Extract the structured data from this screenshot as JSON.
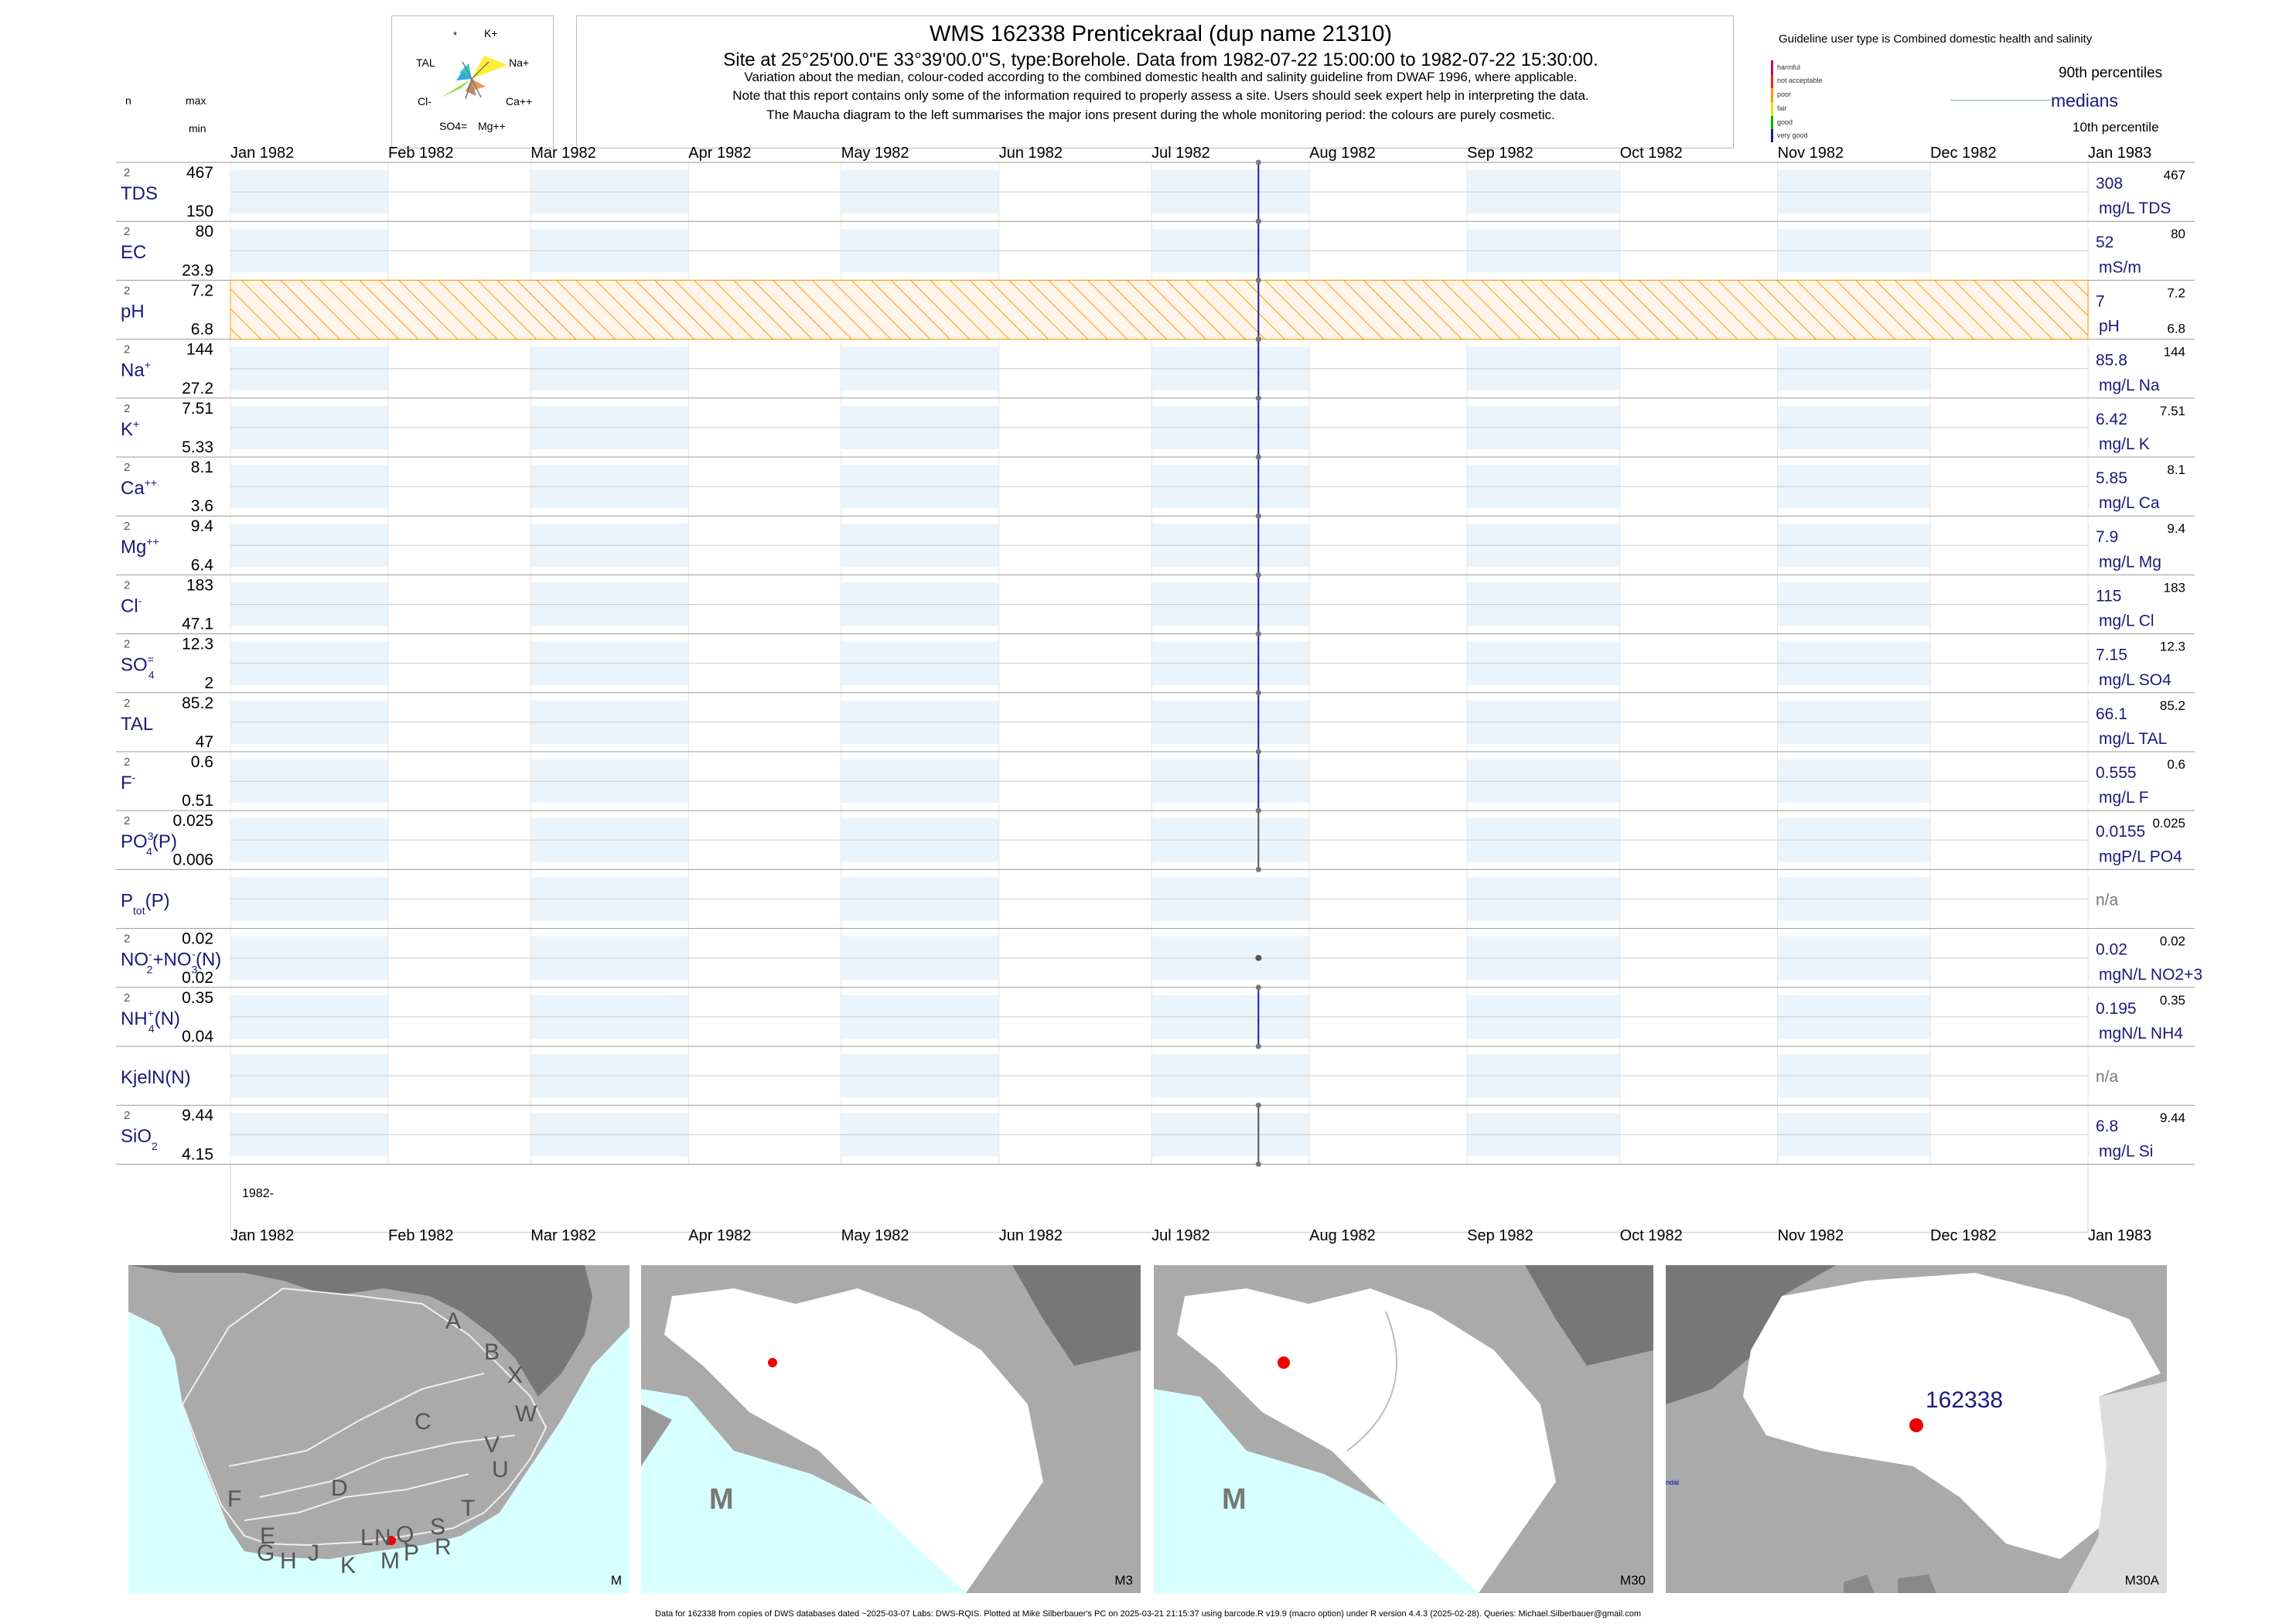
{
  "header": {
    "title": "WMS 162338  Prenticekraal (dup name 21310)",
    "subtitle": "Site at 25°25'00.0\"E 33°39'00.0\"S, type:Borehole.  Data from 1982-07-22 15:00:00 to 1982-07-22 15:30:00.",
    "note1": "Variation about the median,  colour-coded according to the combined domestic health and salinity guideline from DWAF 1996, where applicable.",
    "note2": "Note that this report contains only some of the information required to properly assess a site. Users should seek expert help in interpreting the data.",
    "note3": "The Maucha diagram to the left summarises the major ions present during the whole monitoring period: the colours are purely cosmetic."
  },
  "maucha": {
    "labels": [
      "*",
      "K+",
      "TAL",
      "Na+",
      "Cl-",
      "Ca++",
      "SO4=",
      "Mg++"
    ]
  },
  "left_header": {
    "n": "n",
    "max": "max",
    "min": "min"
  },
  "guideline": {
    "title": "Guideline user type is Combined domestic health and salinity",
    "levels": [
      "harmful",
      "not acceptable",
      "poor",
      "fair",
      "good",
      "very good"
    ],
    "level_colors": [
      "#c00070",
      "#ff2020",
      "#ff9900",
      "#f0e000",
      "#00b000",
      "#1a1aaa"
    ],
    "p90": "90th percentiles",
    "median": "medians",
    "p10": "10th percentile"
  },
  "axis": {
    "months": [
      "Jan 1982",
      "Feb 1982",
      "Mar 1982",
      "Apr 1982",
      "May 1982",
      "Jun 1982",
      "Jul 1982",
      "Aug 1982",
      "Sep 1982",
      "Oct 1982",
      "Nov 1982",
      "Dec 1982",
      "Jan 1983"
    ],
    "year_label": "1982-"
  },
  "chart_data": {
    "type": "line",
    "x_range": [
      "1982-01-01",
      "1983-01-01"
    ],
    "sample_date": "1982-07-22",
    "series": [
      {
        "label": "TDS",
        "n": "2",
        "max": "467",
        "min": "150",
        "median": "308",
        "unit": "mg/L TDS",
        "p90": "467",
        "p10": ""
      },
      {
        "label": "EC",
        "n": "2",
        "max": "80",
        "min": "23.9",
        "median": "52",
        "unit": "mS/m",
        "p90": "80",
        "p10": ""
      },
      {
        "label": "pH",
        "n": "2",
        "max": "7.2",
        "min": "6.8",
        "median": "7",
        "unit": "pH",
        "p90": "7.2",
        "p10": "6.8"
      },
      {
        "label": "Na",
        "sup": "+",
        "n": "2",
        "max": "144",
        "min": "27.2",
        "median": "85.8",
        "unit": "mg/L Na",
        "p90": "144",
        "p10": ""
      },
      {
        "label": "K",
        "sup": "+",
        "n": "2",
        "max": "7.51",
        "min": "5.33",
        "median": "6.42",
        "unit": "mg/L K",
        "p90": "7.51",
        "p10": ""
      },
      {
        "label": "Ca",
        "sup": "++",
        "n": "2",
        "max": "8.1",
        "min": "3.6",
        "median": "5.85",
        "unit": "mg/L Ca",
        "p90": "8.1",
        "p10": ""
      },
      {
        "label": "Mg",
        "sup": "++",
        "n": "2",
        "max": "9.4",
        "min": "6.4",
        "median": "7.9",
        "unit": "mg/L Mg",
        "p90": "9.4",
        "p10": ""
      },
      {
        "label": "Cl",
        "sup": "-",
        "n": "2",
        "max": "183",
        "min": "47.1",
        "median": "115",
        "unit": "mg/L Cl",
        "p90": "183",
        "p10": ""
      },
      {
        "label": "SO",
        "sub": "4",
        "sup": "=",
        "n": "2",
        "max": "12.3",
        "min": "2",
        "median": "7.15",
        "unit": "mg/L SO4",
        "p90": "12.3",
        "p10": ""
      },
      {
        "label": "TAL",
        "n": "2",
        "max": "85.2",
        "min": "47",
        "median": "66.1",
        "unit": "mg/L TAL",
        "p90": "85.2",
        "p10": ""
      },
      {
        "label": "F",
        "sup": "-",
        "n": "2",
        "max": "0.6",
        "min": "0.51",
        "median": "0.555",
        "unit": "mg/L F",
        "p90": "0.6",
        "p10": ""
      },
      {
        "label": "PO",
        "sub": "4",
        "sup": "3-",
        "suffix": "(P)",
        "n": "2",
        "max": "0.025",
        "min": "0.006",
        "median": "0.0155",
        "unit": "mgP/L PO4",
        "p90": "0.025",
        "p10": ""
      },
      {
        "label": "P",
        "sub": "tot",
        "suffix": "(P)",
        "n": "",
        "max": "",
        "min": "",
        "median": "n/a",
        "unit": "",
        "p90": "",
        "p10": ""
      },
      {
        "label": "NO",
        "sub": "2",
        "sup": "-",
        "suffix": "+NO",
        "sub2": "3",
        "sup2": "-",
        "suffix2": "(N)",
        "n": "2",
        "max": "0.02",
        "min": "0.02",
        "median": "0.02",
        "unit": "mgN/L NO2+3",
        "p90": "0.02",
        "p10": ""
      },
      {
        "label": "NH",
        "sub": "4",
        "sup": "+",
        "suffix": "(N)",
        "n": "2",
        "max": "0.35",
        "min": "0.04",
        "median": "0.195",
        "unit": "mgN/L NH4",
        "p90": "0.35",
        "p10": ""
      },
      {
        "label": "KjelN(N)",
        "n": "",
        "max": "",
        "min": "",
        "median": "n/a",
        "unit": "",
        "p90": "",
        "p10": ""
      },
      {
        "label": "SiO",
        "sub": "2",
        "n": "2",
        "max": "9.44",
        "min": "4.15",
        "median": "6.8",
        "unit": "mg/L Si",
        "p90": "9.44",
        "p10": ""
      }
    ],
    "guideline_band": {
      "row": "pH",
      "color": "#ff9900"
    }
  },
  "maps": {
    "regional_letters": [
      "A",
      "B",
      "X",
      "W",
      "C",
      "V",
      "U",
      "D",
      "T",
      "F",
      "E",
      "S",
      "R",
      "Q",
      "N",
      "L",
      "P",
      "M",
      "K",
      "J",
      "H",
      "G"
    ],
    "panel1": "M",
    "panel2": "M3",
    "panel3": "M30",
    "panel4": "M30A",
    "big_m": "M",
    "site_label": "162338",
    "edge_text": "ndal"
  },
  "footer": "Data for 162338 from copies of DWS databases dated ~2025-03-07 Labs: DWS-RQIS. Plotted at Mike Silberbauer's PC on 2025-03-21 21:15:37 using barcode.R v19.9 (macro option) under R version 4.4.3 (2025-02-28). Queries: Michael.Silberbauer@gmail.com"
}
